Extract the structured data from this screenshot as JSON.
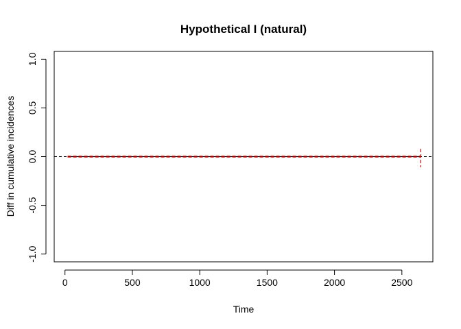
{
  "chart_data": {
    "type": "line",
    "title": "Hypothetical I (natural)",
    "xlabel": "Time",
    "ylabel": "Diff in cumulative incidences",
    "xlim": [
      -80,
      2730
    ],
    "ylim": [
      -1.08,
      1.08
    ],
    "x_ticks": [
      0,
      500,
      1000,
      1500,
      2000,
      2500
    ],
    "x_tick_labels": [
      "0",
      "500",
      "1000",
      "1500",
      "2000",
      "2500"
    ],
    "y_ticks": [
      -1.0,
      -0.5,
      0.0,
      0.5,
      1.0
    ],
    "y_tick_labels": [
      "-1.0",
      "-0.5",
      "0.0",
      "0.5",
      "1.0"
    ],
    "grid": false,
    "reference_line": {
      "y": 0,
      "style": "dashed",
      "color": "#000000"
    },
    "series": [
      {
        "x": [
          20,
          2640
        ],
        "values": [
          0.0,
          0.0
        ],
        "color": "#000000"
      },
      {
        "x": [
          20,
          2640
        ],
        "values": [
          0.005,
          0.005
        ],
        "color": "#cc0000",
        "style": "dashed"
      },
      {
        "x": [
          20,
          2640
        ],
        "values": [
          -0.005,
          -0.005
        ],
        "color": "#cc0000",
        "style": "dashed"
      }
    ],
    "end_whisker": {
      "x": 2640,
      "low": -0.11,
      "high": 0.08,
      "color": "#cc0000"
    }
  }
}
